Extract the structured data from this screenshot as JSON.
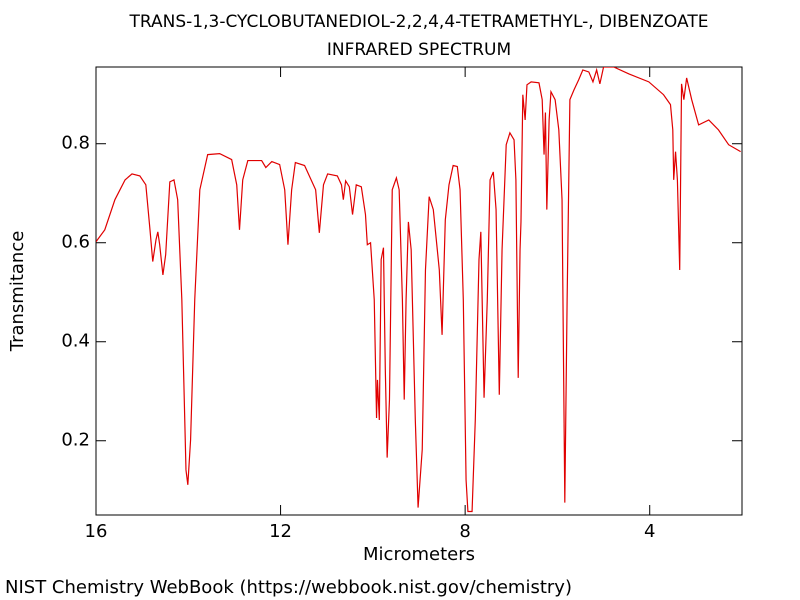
{
  "chart_data": {
    "type": "line",
    "title": "TRANS-1,3-CYCLOBUTANEDIOL-2,2,4,4-TETRAMETHYL-, DIBENZOATE",
    "subtitle": "INFRARED SPECTRUM",
    "x_label": "Micrometers",
    "y_label": "Transmitance",
    "source": "NIST Chemistry WebBook (https://webbook.nist.gov/chemistry)",
    "color": "#e00000",
    "xlim": [
      16,
      2
    ],
    "ylim": [
      0.05,
      0.955
    ],
    "xticks": [
      16,
      12,
      8,
      4
    ],
    "yticks": [
      0.2,
      0.4,
      0.6,
      0.8
    ],
    "x": [
      16,
      15.81,
      15.59,
      15.37,
      15.22,
      15.05,
      14.92,
      14.83,
      14.77,
      14.7,
      14.66,
      14.62,
      14.55,
      14.49,
      14.4,
      14.31,
      14.23,
      14.14,
      14.05,
      14.01,
      13.95,
      13.86,
      13.75,
      13.58,
      13.32,
      13.06,
      12.95,
      12.89,
      12.82,
      12.71,
      12.41,
      12.32,
      12.19,
      12.02,
      11.91,
      11.84,
      11.76,
      11.68,
      11.48,
      11.24,
      11.16,
      11.07,
      10.98,
      10.77,
      10.68,
      10.64,
      10.59,
      10.51,
      10.44,
      10.36,
      10.25,
      10.16,
      10.12,
      10.05,
      9.97,
      9.92,
      9.9,
      9.86,
      9.82,
      9.77,
      9.73,
      9.69,
      9.64,
      9.58,
      9.49,
      9.43,
      9.36,
      9.32,
      9.28,
      9.23,
      9.17,
      9.08,
      9.02,
      8.93,
      8.86,
      8.78,
      8.69,
      8.56,
      8.5,
      8.43,
      8.35,
      8.26,
      8.17,
      8.11,
      8.04,
      7.98,
      7.94,
      7.85,
      7.78,
      7.7,
      7.66,
      7.59,
      7.52,
      7.46,
      7.39,
      7.33,
      7.26,
      7.2,
      7.11,
      7.03,
      6.94,
      6.9,
      6.85,
      6.81,
      6.79,
      6.75,
      6.7,
      6.66,
      6.57,
      6.4,
      6.33,
      6.29,
      6.26,
      6.23,
      6.18,
      6.14,
      6.05,
      5.97,
      5.9,
      5.84,
      5.79,
      5.73,
      5.64,
      5.54,
      5.45,
      5.32,
      5.23,
      5.15,
      5.08,
      5.0,
      4.78,
      4.45,
      4.02,
      3.7,
      3.55,
      3.5,
      3.48,
      3.44,
      3.4,
      3.35,
      3.31,
      3.26,
      3.2,
      3.09,
      2.94,
      2.72,
      2.51,
      2.29,
      2.03
    ],
    "values": [
      0.602,
      0.626,
      0.687,
      0.727,
      0.739,
      0.735,
      0.717,
      0.626,
      0.562,
      0.606,
      0.622,
      0.596,
      0.535,
      0.576,
      0.723,
      0.727,
      0.687,
      0.485,
      0.141,
      0.111,
      0.202,
      0.485,
      0.707,
      0.778,
      0.78,
      0.768,
      0.717,
      0.626,
      0.727,
      0.766,
      0.766,
      0.752,
      0.764,
      0.758,
      0.707,
      0.596,
      0.707,
      0.762,
      0.756,
      0.707,
      0.62,
      0.717,
      0.739,
      0.735,
      0.717,
      0.687,
      0.725,
      0.713,
      0.657,
      0.717,
      0.713,
      0.657,
      0.596,
      0.6,
      0.485,
      0.246,
      0.323,
      0.242,
      0.566,
      0.59,
      0.343,
      0.166,
      0.283,
      0.707,
      0.731,
      0.707,
      0.485,
      0.283,
      0.485,
      0.642,
      0.586,
      0.242,
      0.065,
      0.182,
      0.545,
      0.693,
      0.667,
      0.545,
      0.414,
      0.646,
      0.717,
      0.756,
      0.754,
      0.707,
      0.485,
      0.121,
      0.057,
      0.057,
      0.242,
      0.566,
      0.622,
      0.287,
      0.485,
      0.727,
      0.743,
      0.667,
      0.293,
      0.586,
      0.798,
      0.822,
      0.808,
      0.727,
      0.327,
      0.586,
      0.642,
      0.899,
      0.848,
      0.919,
      0.925,
      0.923,
      0.889,
      0.778,
      0.863,
      0.667,
      0.848,
      0.905,
      0.889,
      0.828,
      0.687,
      0.075,
      0.485,
      0.889,
      0.909,
      0.929,
      0.949,
      0.945,
      0.925,
      0.949,
      0.921,
      0.955,
      0.955,
      0.941,
      0.925,
      0.899,
      0.879,
      0.828,
      0.727,
      0.784,
      0.727,
      0.545,
      0.921,
      0.889,
      0.933,
      0.889,
      0.838,
      0.848,
      0.828,
      0.798,
      0.784
    ]
  }
}
